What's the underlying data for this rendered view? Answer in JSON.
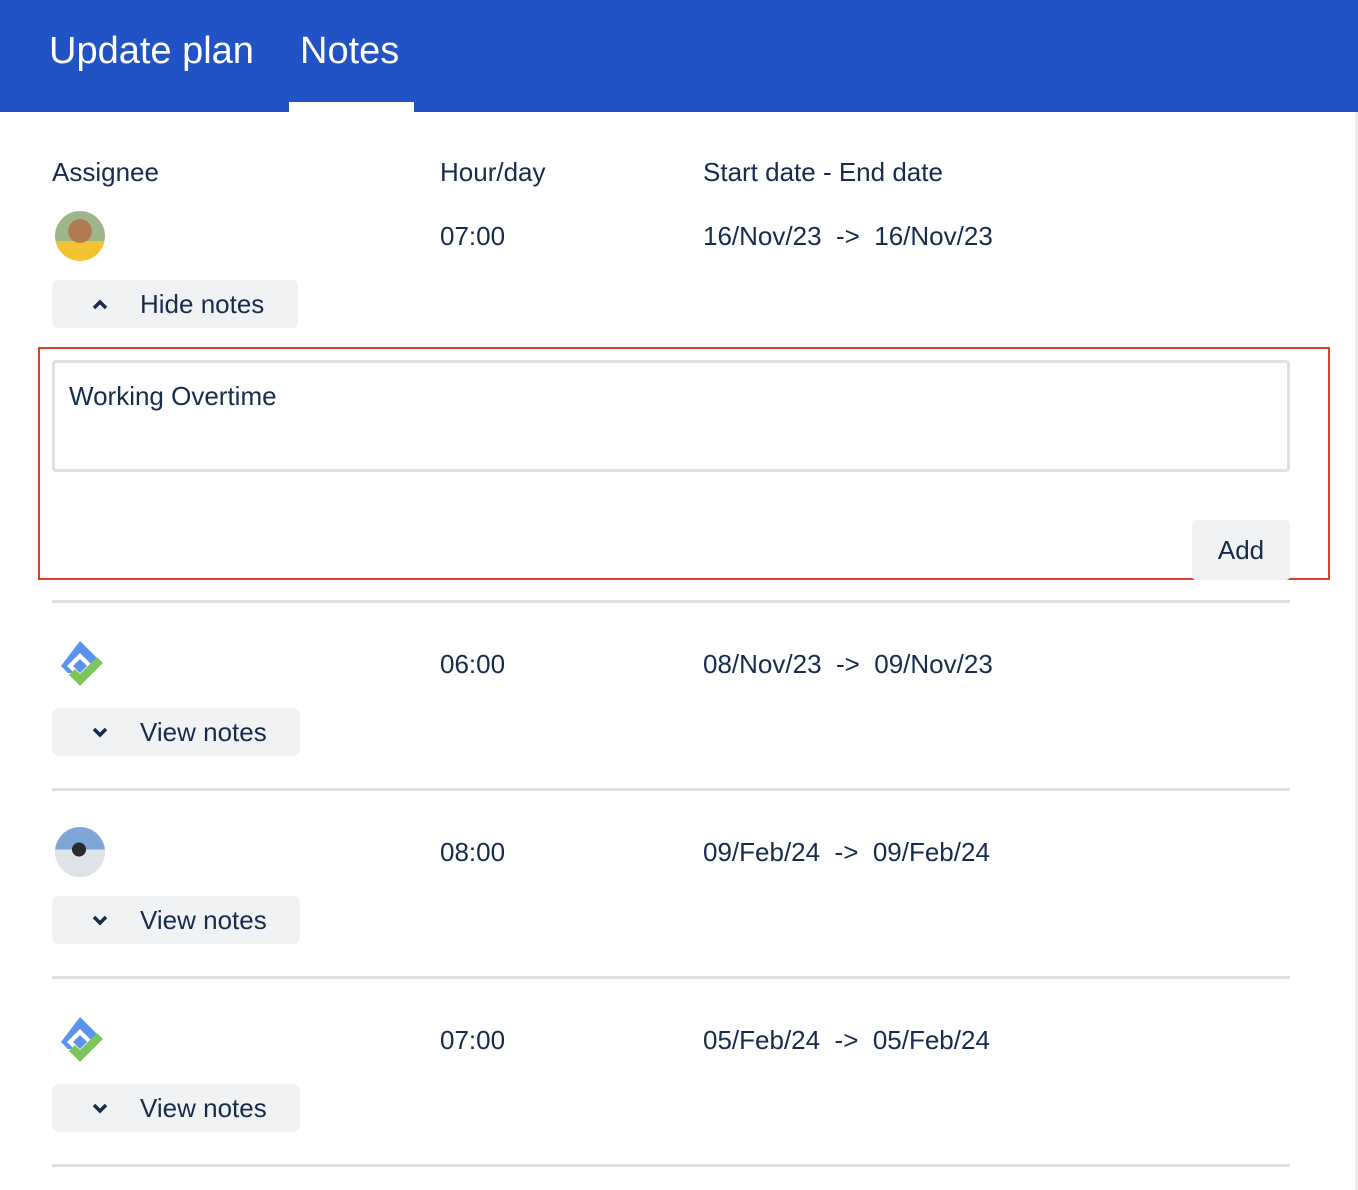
{
  "tabs": [
    {
      "label": "Update plan"
    },
    {
      "label": "Notes",
      "active": true
    }
  ],
  "columns": {
    "assignee": "Assignee",
    "hours": "Hour/day",
    "dates": "Start date - End date"
  },
  "rows": [
    {
      "avatar": "photo-avatar-man",
      "hours": "07:00",
      "dates": "16/Nov/23  ->  16/Nov/23",
      "toggle": "Hide notes",
      "expanded": true
    },
    {
      "avatar": "app-logo-icon",
      "hours": "06:00",
      "dates": "08/Nov/23  ->  09/Nov/23",
      "toggle": "View notes"
    },
    {
      "avatar": "photo-avatar-woman",
      "hours": "08:00",
      "dates": "09/Feb/24  ->  09/Feb/24",
      "toggle": "View notes"
    },
    {
      "avatar": "app-logo-icon",
      "hours": "07:00",
      "dates": "05/Feb/24  ->  05/Feb/24",
      "toggle": "View notes"
    }
  ],
  "notes": {
    "value": "Working Overtime",
    "add_label": "Add"
  },
  "colors": {
    "header": "#2152C6",
    "text": "#172B4D",
    "highlight": "#E0402A"
  }
}
